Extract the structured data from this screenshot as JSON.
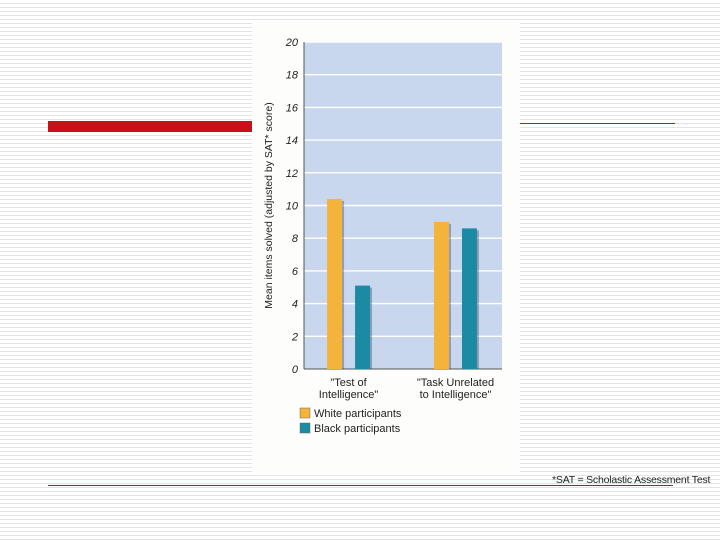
{
  "chart_data": {
    "type": "bar",
    "title": "",
    "ylabel": "Mean items solved (adjusted by SAT* score)",
    "xlabel": "",
    "ylim": [
      0,
      20
    ],
    "yticks": [
      "0",
      "2",
      "4",
      "6",
      "8",
      "10",
      "12",
      "14",
      "16",
      "18",
      "20"
    ],
    "grid": true,
    "categories": [
      {
        "lines": [
          "\"Test of",
          "Intelligence\""
        ]
      },
      {
        "lines": [
          "\"Task Unrelated",
          "to Intelligence\""
        ]
      }
    ],
    "series": [
      {
        "name": "White participants",
        "color": "#f4b43c",
        "values": [
          10.4,
          9.0
        ]
      },
      {
        "name": "Black participants",
        "color": "#1b8aa3",
        "values": [
          5.1,
          8.6
        ]
      }
    ],
    "legend_position": "bottom-left",
    "footnote": "*SAT = Scholastic Assessment Test",
    "plot_background": "#c9d7ee"
  },
  "slide": {
    "accent_color": "#c8101a"
  }
}
